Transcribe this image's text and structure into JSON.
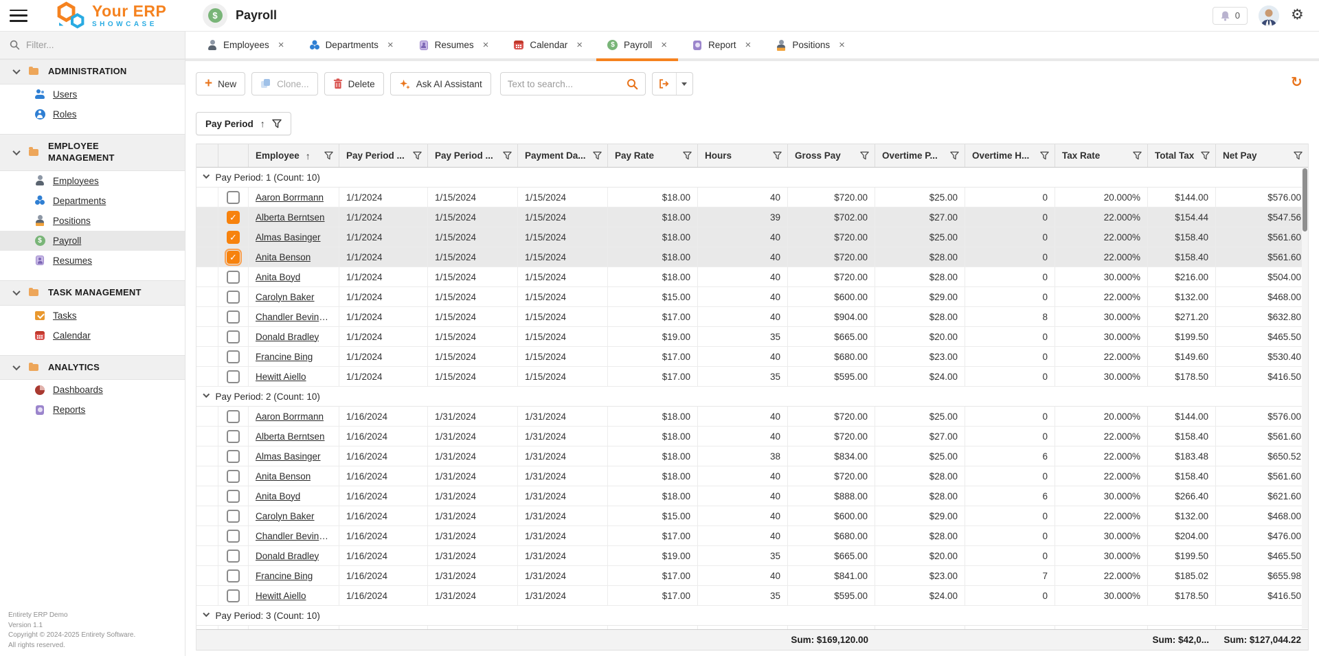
{
  "app": {
    "logo_line1": "Your ERP",
    "logo_line2": "SHOWCASE",
    "page_title": "Payroll",
    "notification_count": "0"
  },
  "sidebar": {
    "filter_placeholder": "Filter...",
    "sections": [
      {
        "label": "ADMINISTRATION",
        "items": [
          {
            "label": "Users",
            "icon": "users-icon"
          },
          {
            "label": "Roles",
            "icon": "roles-icon"
          }
        ]
      },
      {
        "label": "EMPLOYEE MANAGEMENT",
        "items": [
          {
            "label": "Employees",
            "icon": "employees-icon"
          },
          {
            "label": "Departments",
            "icon": "departments-icon"
          },
          {
            "label": "Positions",
            "icon": "positions-icon"
          },
          {
            "label": "Payroll",
            "icon": "payroll-icon",
            "active": true
          },
          {
            "label": "Resumes",
            "icon": "resumes-icon"
          }
        ]
      },
      {
        "label": "TASK MANAGEMENT",
        "items": [
          {
            "label": "Tasks",
            "icon": "tasks-icon"
          },
          {
            "label": "Calendar",
            "icon": "calendar-icon"
          }
        ]
      },
      {
        "label": "ANALYTICS",
        "items": [
          {
            "label": "Dashboards",
            "icon": "dashboards-icon"
          },
          {
            "label": "Reports",
            "icon": "reports-icon"
          }
        ]
      }
    ],
    "footer_lines": [
      "Entirety ERP Demo",
      "Version 1.1",
      "Copyright © 2024-2025 Entirety Software.",
      "All rights reserved."
    ]
  },
  "tabs": [
    {
      "label": "Employees",
      "icon": "employees-icon"
    },
    {
      "label": "Departments",
      "icon": "departments-icon"
    },
    {
      "label": "Resumes",
      "icon": "resumes-icon"
    },
    {
      "label": "Calendar",
      "icon": "calendar-icon"
    },
    {
      "label": "Payroll",
      "icon": "payroll-icon",
      "active": true
    },
    {
      "label": "Report",
      "icon": "reports-icon"
    },
    {
      "label": "Positions",
      "icon": "positions-icon"
    }
  ],
  "toolbar": {
    "new_label": "New",
    "clone_label": "Clone...",
    "delete_label": "Delete",
    "ai_label": "Ask AI Assistant",
    "search_placeholder": "Text to search..."
  },
  "group_panel": {
    "chip_label": "Pay Period",
    "sort": "asc"
  },
  "grid": {
    "columns": [
      {
        "label": "Employee",
        "align": "left",
        "sort": "asc"
      },
      {
        "label": "Pay Period ...",
        "align": "left"
      },
      {
        "label": "Pay Period ...",
        "align": "left"
      },
      {
        "label": "Payment Da...",
        "align": "left"
      },
      {
        "label": "Pay Rate",
        "align": "right"
      },
      {
        "label": "Hours",
        "align": "right"
      },
      {
        "label": "Gross Pay",
        "align": "right"
      },
      {
        "label": "Overtime P...",
        "align": "right"
      },
      {
        "label": "Overtime H...",
        "align": "right"
      },
      {
        "label": "Tax Rate",
        "align": "right"
      },
      {
        "label": "Total Tax",
        "align": "right"
      },
      {
        "label": "Net Pay",
        "align": "right"
      }
    ],
    "groups": [
      {
        "label": "Pay Period: 1 (Count: 10)",
        "rows": [
          {
            "checked": false,
            "cells": [
              "Aaron Borrmann",
              "1/1/2024",
              "1/15/2024",
              "1/15/2024",
              "$18.00",
              "40",
              "$720.00",
              "$25.00",
              "0",
              "20.000%",
              "$144.00",
              "$576.00"
            ]
          },
          {
            "checked": true,
            "cells": [
              "Alberta Berntsen",
              "1/1/2024",
              "1/15/2024",
              "1/15/2024",
              "$18.00",
              "39",
              "$702.00",
              "$27.00",
              "0",
              "22.000%",
              "$154.44",
              "$547.56"
            ]
          },
          {
            "checked": true,
            "cells": [
              "Almas Basinger",
              "1/1/2024",
              "1/15/2024",
              "1/15/2024",
              "$18.00",
              "40",
              "$720.00",
              "$25.00",
              "0",
              "22.000%",
              "$158.40",
              "$561.60"
            ]
          },
          {
            "checked": true,
            "focused": true,
            "cells": [
              "Anita Benson",
              "1/1/2024",
              "1/15/2024",
              "1/15/2024",
              "$18.00",
              "40",
              "$720.00",
              "$28.00",
              "0",
              "22.000%",
              "$158.40",
              "$561.60"
            ]
          },
          {
            "checked": false,
            "cells": [
              "Anita Boyd",
              "1/1/2024",
              "1/15/2024",
              "1/15/2024",
              "$18.00",
              "40",
              "$720.00",
              "$28.00",
              "0",
              "30.000%",
              "$216.00",
              "$504.00"
            ]
          },
          {
            "checked": false,
            "cells": [
              "Carolyn Baker",
              "1/1/2024",
              "1/15/2024",
              "1/15/2024",
              "$15.00",
              "40",
              "$600.00",
              "$29.00",
              "0",
              "22.000%",
              "$132.00",
              "$468.00"
            ]
          },
          {
            "checked": false,
            "cells": [
              "Chandler Bevingt...",
              "1/1/2024",
              "1/15/2024",
              "1/15/2024",
              "$17.00",
              "40",
              "$904.00",
              "$28.00",
              "8",
              "30.000%",
              "$271.20",
              "$632.80"
            ]
          },
          {
            "checked": false,
            "cells": [
              "Donald Bradley",
              "1/1/2024",
              "1/15/2024",
              "1/15/2024",
              "$19.00",
              "35",
              "$665.00",
              "$20.00",
              "0",
              "30.000%",
              "$199.50",
              "$465.50"
            ]
          },
          {
            "checked": false,
            "cells": [
              "Francine Bing",
              "1/1/2024",
              "1/15/2024",
              "1/15/2024",
              "$17.00",
              "40",
              "$680.00",
              "$23.00",
              "0",
              "22.000%",
              "$149.60",
              "$530.40"
            ]
          },
          {
            "checked": false,
            "cells": [
              "Hewitt Aiello",
              "1/1/2024",
              "1/15/2024",
              "1/15/2024",
              "$17.00",
              "35",
              "$595.00",
              "$24.00",
              "0",
              "30.000%",
              "$178.50",
              "$416.50"
            ]
          }
        ]
      },
      {
        "label": "Pay Period: 2 (Count: 10)",
        "rows": [
          {
            "checked": false,
            "cells": [
              "Aaron Borrmann",
              "1/16/2024",
              "1/31/2024",
              "1/31/2024",
              "$18.00",
              "40",
              "$720.00",
              "$25.00",
              "0",
              "20.000%",
              "$144.00",
              "$576.00"
            ]
          },
          {
            "checked": false,
            "cells": [
              "Alberta Berntsen",
              "1/16/2024",
              "1/31/2024",
              "1/31/2024",
              "$18.00",
              "40",
              "$720.00",
              "$27.00",
              "0",
              "22.000%",
              "$158.40",
              "$561.60"
            ]
          },
          {
            "checked": false,
            "cells": [
              "Almas Basinger",
              "1/16/2024",
              "1/31/2024",
              "1/31/2024",
              "$18.00",
              "38",
              "$834.00",
              "$25.00",
              "6",
              "22.000%",
              "$183.48",
              "$650.52"
            ]
          },
          {
            "checked": false,
            "cells": [
              "Anita Benson",
              "1/16/2024",
              "1/31/2024",
              "1/31/2024",
              "$18.00",
              "40",
              "$720.00",
              "$28.00",
              "0",
              "22.000%",
              "$158.40",
              "$561.60"
            ]
          },
          {
            "checked": false,
            "cells": [
              "Anita Boyd",
              "1/16/2024",
              "1/31/2024",
              "1/31/2024",
              "$18.00",
              "40",
              "$888.00",
              "$28.00",
              "6",
              "30.000%",
              "$266.40",
              "$621.60"
            ]
          },
          {
            "checked": false,
            "cells": [
              "Carolyn Baker",
              "1/16/2024",
              "1/31/2024",
              "1/31/2024",
              "$15.00",
              "40",
              "$600.00",
              "$29.00",
              "0",
              "22.000%",
              "$132.00",
              "$468.00"
            ]
          },
          {
            "checked": false,
            "cells": [
              "Chandler Bevingt...",
              "1/16/2024",
              "1/31/2024",
              "1/31/2024",
              "$17.00",
              "40",
              "$680.00",
              "$28.00",
              "0",
              "30.000%",
              "$204.00",
              "$476.00"
            ]
          },
          {
            "checked": false,
            "cells": [
              "Donald Bradley",
              "1/16/2024",
              "1/31/2024",
              "1/31/2024",
              "$19.00",
              "35",
              "$665.00",
              "$20.00",
              "0",
              "30.000%",
              "$199.50",
              "$465.50"
            ]
          },
          {
            "checked": false,
            "cells": [
              "Francine Bing",
              "1/16/2024",
              "1/31/2024",
              "1/31/2024",
              "$17.00",
              "40",
              "$841.00",
              "$23.00",
              "7",
              "22.000%",
              "$185.02",
              "$655.98"
            ]
          },
          {
            "checked": false,
            "cells": [
              "Hewitt Aiello",
              "1/16/2024",
              "1/31/2024",
              "1/31/2024",
              "$17.00",
              "35",
              "$595.00",
              "$24.00",
              "0",
              "30.000%",
              "$178.50",
              "$416.50"
            ]
          }
        ]
      },
      {
        "label": "Pay Period: 3 (Count: 10)",
        "rows": []
      }
    ],
    "summary": {
      "gross_pay_sum": "Sum: $169,120.00",
      "total_tax_sum": "Sum: $42,0...",
      "net_pay_sum": "Sum: $127,044.22"
    }
  }
}
